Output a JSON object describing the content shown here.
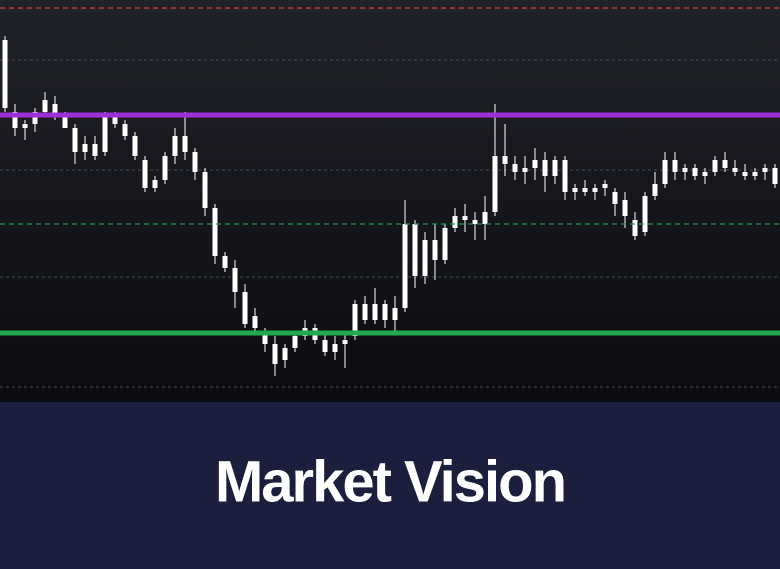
{
  "chart_data": {
    "type": "candlestick",
    "title": "Market Vision",
    "ylim": [
      0,
      100
    ],
    "grid_lines": [
      85,
      57.5,
      30.75,
      3.25
    ],
    "levels": [
      {
        "value": 98,
        "color": "#e03c3c",
        "style": "dashed"
      },
      {
        "value": 71.25,
        "color": "#9b30d9",
        "style": "solid"
      },
      {
        "value": 44,
        "color": "#1f9a4f",
        "style": "dashed"
      },
      {
        "value": 16.75,
        "color": "#1faa4f",
        "style": "solid"
      }
    ],
    "candle_color": "#ffffff",
    "candles": [
      [
        73,
        91,
        72,
        90
      ],
      [
        72,
        74,
        66,
        68
      ],
      [
        68,
        70,
        65,
        69
      ],
      [
        69,
        73,
        67,
        72
      ],
      [
        72,
        77,
        71,
        75
      ],
      [
        74,
        76,
        70,
        71
      ],
      [
        71,
        72,
        68,
        68
      ],
      [
        68,
        69,
        59,
        62
      ],
      [
        62,
        66,
        60,
        64
      ],
      [
        64,
        66,
        60,
        61
      ],
      [
        62,
        72,
        61,
        71
      ],
      [
        71,
        72,
        68,
        69
      ],
      [
        69,
        70,
        65,
        66
      ],
      [
        66,
        67,
        60,
        61
      ],
      [
        60,
        61,
        52,
        53
      ],
      [
        53,
        56,
        52,
        55
      ],
      [
        55,
        62,
        54,
        61
      ],
      [
        61,
        68,
        59,
        66
      ],
      [
        66,
        72,
        60,
        62
      ],
      [
        62,
        63,
        55,
        57
      ],
      [
        57,
        58,
        46,
        48
      ],
      [
        48,
        49,
        34,
        36
      ],
      [
        36,
        37,
        32,
        33
      ],
      [
        33,
        35,
        23,
        27
      ],
      [
        27,
        29,
        18,
        19
      ],
      [
        21,
        23,
        17,
        18
      ],
      [
        17,
        18,
        12,
        14
      ],
      [
        14,
        16,
        6,
        9
      ],
      [
        10,
        14,
        8,
        13
      ],
      [
        13,
        17,
        12,
        16
      ],
      [
        16,
        20,
        15,
        18
      ],
      [
        18,
        19,
        14,
        15
      ],
      [
        15,
        17,
        11,
        12
      ],
      [
        12,
        16,
        10,
        14
      ],
      [
        14,
        17,
        8,
        15
      ],
      [
        16,
        25,
        15,
        24
      ],
      [
        24,
        26,
        19,
        20
      ],
      [
        20,
        28,
        19,
        24
      ],
      [
        24,
        25,
        18,
        20
      ],
      [
        20,
        26,
        17,
        23
      ],
      [
        23,
        50,
        22,
        44
      ],
      [
        44,
        45,
        28,
        31
      ],
      [
        31,
        42,
        29,
        40
      ],
      [
        40,
        44,
        30,
        35
      ],
      [
        35,
        44,
        34,
        43
      ],
      [
        43,
        48,
        42,
        46
      ],
      [
        46,
        49,
        42,
        45
      ],
      [
        45,
        47,
        40,
        44
      ],
      [
        44,
        51,
        40,
        47
      ],
      [
        47,
        74,
        46,
        61
      ],
      [
        61,
        69,
        56,
        59
      ],
      [
        59,
        61,
        55,
        57
      ],
      [
        57,
        61,
        54,
        58
      ],
      [
        58,
        63,
        55,
        60
      ],
      [
        60,
        62,
        52,
        56
      ],
      [
        56,
        61,
        54,
        60
      ],
      [
        60,
        61,
        50,
        52
      ],
      [
        52,
        54,
        50,
        53
      ],
      [
        53,
        55,
        51,
        52
      ],
      [
        52,
        54,
        50,
        53
      ],
      [
        53,
        55,
        51,
        54
      ],
      [
        52,
        53,
        46,
        49
      ],
      [
        50,
        52,
        43,
        46
      ],
      [
        45,
        47,
        40,
        41
      ],
      [
        42,
        52,
        41,
        51
      ],
      [
        51,
        57,
        50,
        54
      ],
      [
        54,
        62,
        53,
        60
      ],
      [
        60,
        62,
        55,
        57
      ],
      [
        57,
        59,
        55,
        58
      ],
      [
        58,
        59,
        55,
        56
      ],
      [
        56,
        58,
        54,
        57
      ],
      [
        57,
        61,
        56,
        60
      ],
      [
        60,
        62,
        57,
        58
      ],
      [
        58,
        60,
        56,
        57
      ],
      [
        57,
        59,
        55,
        56
      ],
      [
        56,
        58,
        55,
        57
      ],
      [
        57,
        59,
        55,
        58
      ],
      [
        58,
        59,
        53,
        54
      ]
    ]
  }
}
